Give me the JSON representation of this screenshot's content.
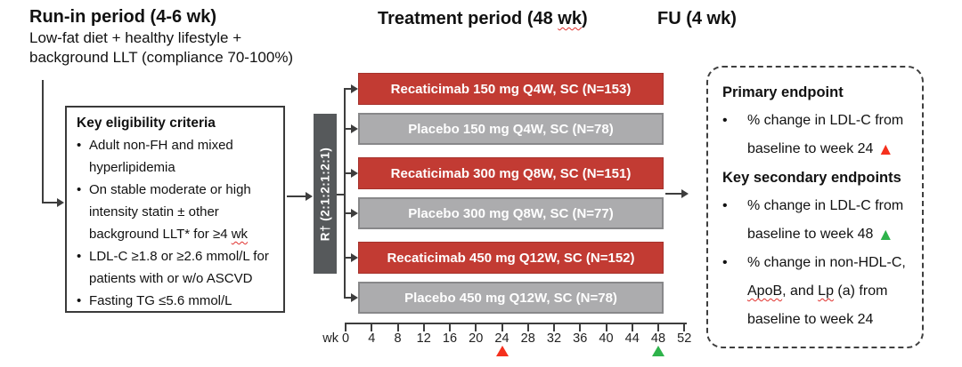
{
  "header": {
    "run_in_title": "Run-in period (4-6 wk)",
    "run_in_line1": "Low-fat diet + healthy lifestyle +",
    "run_in_line2": "background LLT (compliance 70-100%)",
    "treatment_title_segments": [
      {
        "t": "Treatment period (48 "
      },
      {
        "t": "wk",
        "sq": true
      },
      {
        "t": ")"
      }
    ],
    "fu_title": "FU (4 wk)"
  },
  "eligibility": {
    "title": "Key eligibility criteria",
    "bullets": [
      [
        {
          "t": "Adult non-FH and mixed hyperlipidemia"
        }
      ],
      [
        {
          "t": "On stable moderate or high intensity statin ± other background LLT* for ≥4 "
        },
        {
          "t": "wk",
          "sq": true
        }
      ],
      [
        {
          "t": "LDL-C ≥1.8 or ≥2.6 mmol/L for patients with or w/o ASCVD"
        }
      ],
      [
        {
          "t": "Fasting TG ≤5.6 mmol/L"
        }
      ]
    ]
  },
  "randomization": {
    "label": "R† (2:1:2:1:2:1)"
  },
  "arms": [
    {
      "label": "Recaticimab 150 mg Q4W, SC (N=153)",
      "type": "drug"
    },
    {
      "label": "Placebo 150 mg Q4W, SC (N=78)",
      "type": "placebo"
    },
    {
      "label": "Recaticimab 300 mg Q8W, SC (N=151)",
      "type": "drug"
    },
    {
      "label": "Placebo 300 mg Q8W, SC (N=77)",
      "type": "placebo"
    },
    {
      "label": "Recaticimab 450 mg Q12W, SC (N=152)",
      "type": "drug"
    },
    {
      "label": "Placebo 450 mg Q12W, SC (N=78)",
      "type": "placebo"
    }
  ],
  "colors": {
    "drug_bar": "#c23b33",
    "placebo_bar": "#acacae",
    "randomization_bar": "#56595b",
    "week24_marker": "#f5301d",
    "week48_marker": "#2eb34b",
    "squiggle": "#e0312e"
  },
  "axis": {
    "unit_label": "wk",
    "weeks": [
      0,
      4,
      8,
      12,
      16,
      20,
      24,
      28,
      32,
      36,
      40,
      44,
      48,
      52
    ],
    "markers": [
      {
        "week": 24,
        "color": "#f5301d",
        "name": "week-24-red-triangle"
      },
      {
        "week": 48,
        "color": "#2eb34b",
        "name": "week-48-green-triangle"
      }
    ]
  },
  "endpoints": {
    "primary_title": "Primary endpoint",
    "primary_bullets": [
      [
        {
          "t": "% change in LDL-C from baseline to week 24 "
        },
        {
          "tri": "#f5301d"
        }
      ]
    ],
    "secondary_title": "Key secondary endpoints",
    "secondary_bullets": [
      [
        {
          "t": "% change in LDL-C from baseline to week 48 "
        },
        {
          "tri": "#2eb34b"
        }
      ],
      [
        {
          "t": "% change in non-HDL-C, "
        },
        {
          "t": "ApoB",
          "sq": true
        },
        {
          "t": ", and "
        },
        {
          "t": "Lp",
          "sq": true
        },
        {
          "t": " (a) from baseline to week 24"
        }
      ]
    ]
  }
}
